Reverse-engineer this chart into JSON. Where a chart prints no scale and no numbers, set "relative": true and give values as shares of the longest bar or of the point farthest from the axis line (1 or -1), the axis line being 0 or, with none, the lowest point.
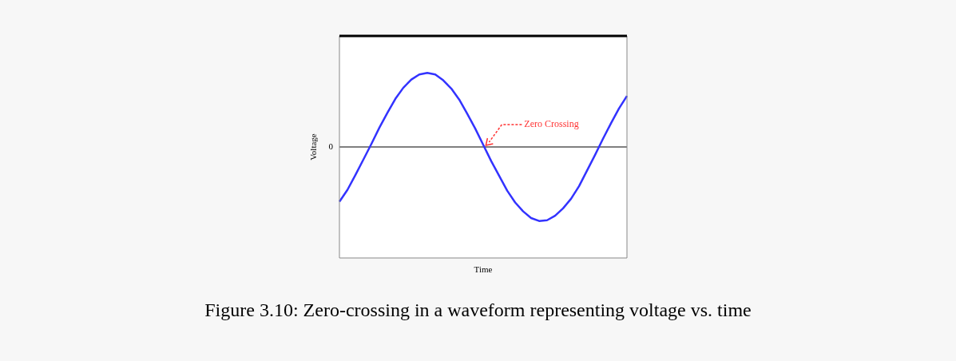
{
  "chart_data": {
    "type": "line",
    "title": "Figure 3.10: Zero-crossing in a waveform representing voltage vs. time",
    "xlabel": "Time",
    "ylabel": "Voltage",
    "relative": true,
    "color": "#3333ff",
    "categories": [
      null,
      null,
      null,
      null,
      null,
      null,
      null,
      null,
      null,
      null,
      null,
      null,
      null,
      null,
      null,
      null,
      null,
      null,
      null,
      null,
      null,
      null,
      null,
      null,
      null,
      null,
      null,
      null,
      null,
      null,
      null,
      null,
      null,
      null,
      null,
      null,
      null
    ],
    "values": [
      -0.74,
      -0.58,
      -0.38,
      -0.17,
      0.04,
      0.26,
      0.46,
      0.65,
      0.8,
      0.91,
      0.98,
      1,
      0.98,
      0.9,
      0.79,
      0.64,
      0.45,
      0.25,
      0.03,
      -0.19,
      -0.39,
      -0.59,
      -0.75,
      -0.87,
      -0.96,
      -1,
      -0.99,
      -0.93,
      -0.83,
      -0.7,
      -0.53,
      -0.32,
      -0.11,
      0.11,
      0.32,
      0.52,
      0.69
    ],
    "ref_lines": [
      {
        "axis": "y",
        "value": 0,
        "label": "0",
        "color": "#000000"
      }
    ],
    "annotations": [
      {
        "text": "Zero Crossing",
        "y": 0
      }
    ]
  }
}
